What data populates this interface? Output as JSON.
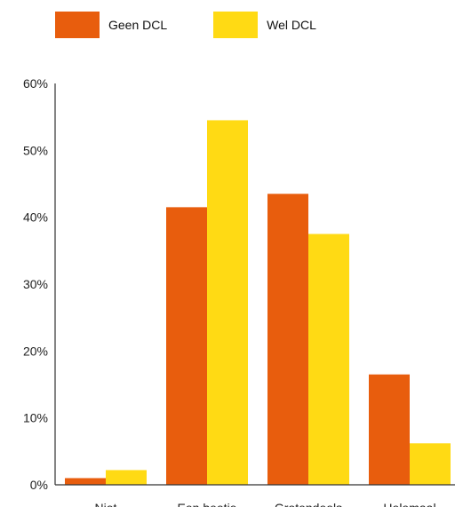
{
  "chart_data": {
    "type": "bar",
    "categories": [
      "Niet",
      "Een beetje",
      "Grotendeels",
      "Helemaal"
    ],
    "series": [
      {
        "name": "Geen DCL",
        "color": "#E85D0D",
        "values": [
          1,
          41.5,
          43.5,
          16.5
        ]
      },
      {
        "name": "Wel DCL",
        "color": "#FFDA14",
        "values": [
          2.2,
          54.5,
          37.5,
          6.2
        ]
      }
    ],
    "ylim": [
      0,
      60
    ],
    "yticks": [
      0,
      10,
      20,
      30,
      40,
      50,
      60
    ],
    "ytick_labels": [
      "0%",
      "10%",
      "20%",
      "30%",
      "40%",
      "50%",
      "60%"
    ],
    "legend": "top-left",
    "grid": false
  }
}
